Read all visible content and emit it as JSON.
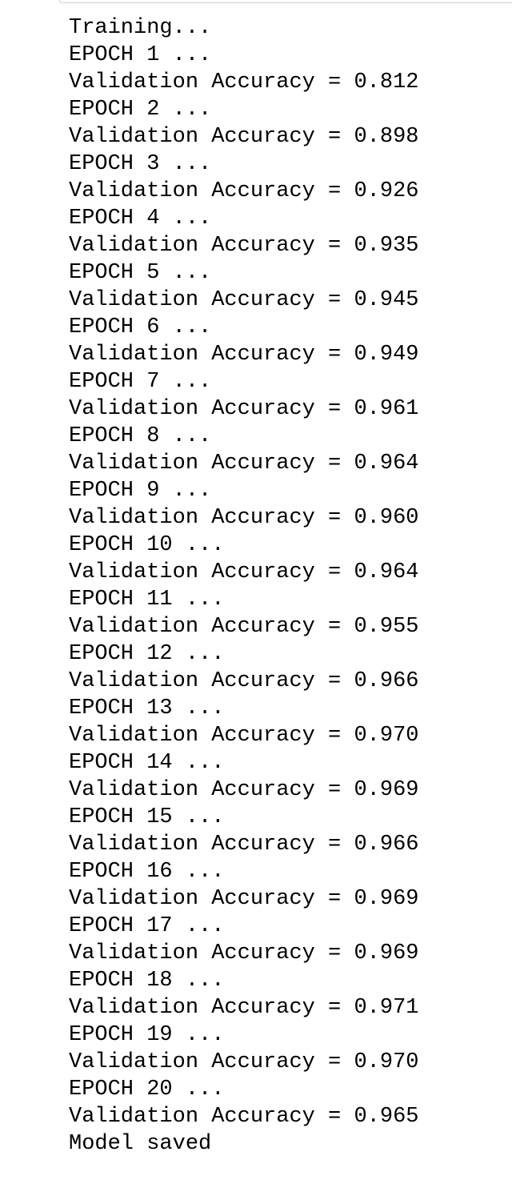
{
  "output": {
    "lines": [
      "Training...",
      "EPOCH 1 ...",
      "Validation Accuracy = 0.812",
      "EPOCH 2 ...",
      "Validation Accuracy = 0.898",
      "EPOCH 3 ...",
      "Validation Accuracy = 0.926",
      "EPOCH 4 ...",
      "Validation Accuracy = 0.935",
      "EPOCH 5 ...",
      "Validation Accuracy = 0.945",
      "EPOCH 6 ...",
      "Validation Accuracy = 0.949",
      "EPOCH 7 ...",
      "Validation Accuracy = 0.961",
      "EPOCH 8 ...",
      "Validation Accuracy = 0.964",
      "EPOCH 9 ...",
      "Validation Accuracy = 0.960",
      "EPOCH 10 ...",
      "Validation Accuracy = 0.964",
      "EPOCH 11 ...",
      "Validation Accuracy = 0.955",
      "EPOCH 12 ...",
      "Validation Accuracy = 0.966",
      "EPOCH 13 ...",
      "Validation Accuracy = 0.970",
      "EPOCH 14 ...",
      "Validation Accuracy = 0.969",
      "EPOCH 15 ...",
      "Validation Accuracy = 0.966",
      "EPOCH 16 ...",
      "Validation Accuracy = 0.969",
      "EPOCH 17 ...",
      "Validation Accuracy = 0.969",
      "EPOCH 18 ...",
      "Validation Accuracy = 0.971",
      "EPOCH 19 ...",
      "Validation Accuracy = 0.970",
      "EPOCH 20 ...",
      "Validation Accuracy = 0.965",
      "Model saved"
    ]
  }
}
